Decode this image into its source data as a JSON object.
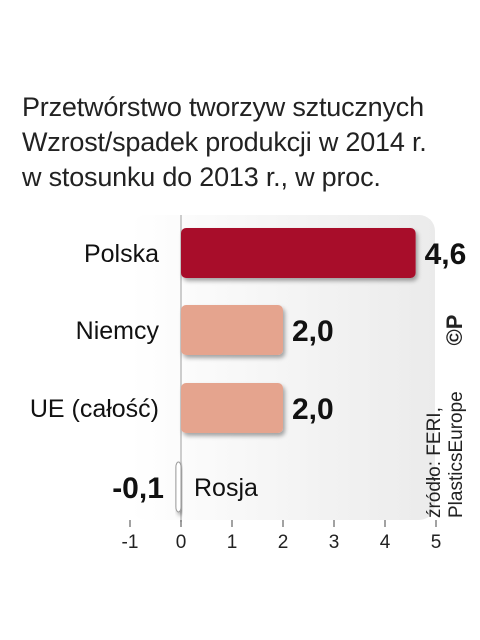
{
  "title_lines": [
    "Przetwórstwo tworzyw sztucznych",
    "Wzrost/spadek produkcji w 2014 r.",
    "w stosunku do 2013 r., w proc."
  ],
  "source_lines": [
    "źródło: FERI,",
    "PlasticsEurope"
  ],
  "copyright": "©P",
  "chart_data": {
    "type": "bar",
    "orientation": "horizontal",
    "categories": [
      "Polska",
      "Niemcy",
      "UE (całość)",
      "Rosja"
    ],
    "values": [
      4.6,
      2.0,
      2.0,
      -0.1
    ],
    "value_labels": [
      "4,6",
      "2,0",
      "2,0",
      "-0,1"
    ],
    "colors": [
      "#a8112c",
      "#e5a48e",
      "#e5a48e",
      "#ffffff"
    ],
    "xlim": [
      -1,
      5
    ],
    "xticks": [
      -1,
      0,
      1,
      2,
      3,
      4,
      5
    ],
    "xtick_labels": [
      "-1",
      "0",
      "1",
      "2",
      "3",
      "4",
      "5"
    ],
    "xlabel": "",
    "ylabel": "",
    "grid": false,
    "legend": "none"
  }
}
